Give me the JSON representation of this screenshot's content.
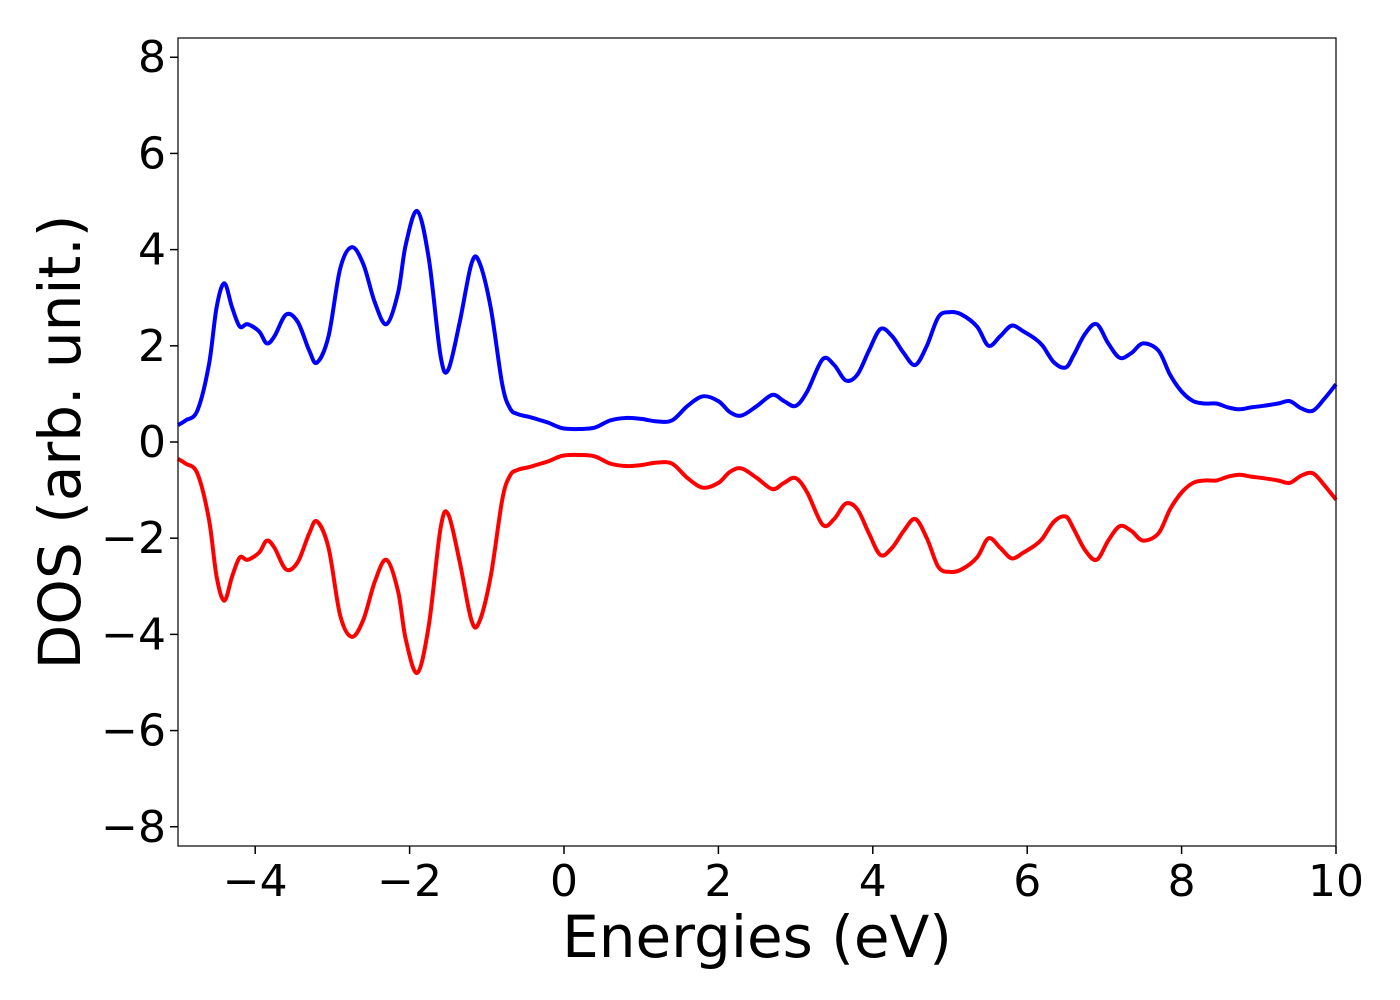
{
  "chart_data": {
    "type": "line",
    "xlabel": "Energies (eV)",
    "ylabel": "DOS (arb. unit.)",
    "xlim": [
      -5,
      10
    ],
    "ylim": [
      -8.4,
      8.4
    ],
    "xticks": [
      -4,
      -2,
      0,
      2,
      4,
      6,
      8,
      10
    ],
    "xtick_labels": [
      "−4",
      "−2",
      "0",
      "2",
      "4",
      "6",
      "8",
      "10"
    ],
    "yticks": [
      8,
      6,
      4,
      2,
      0,
      -2,
      -4,
      -6,
      -8
    ],
    "ytick_labels": [
      "8",
      "6",
      "4",
      "2",
      "0",
      "−2",
      "−4",
      "−6",
      "−8"
    ],
    "grid": false,
    "series": [
      {
        "color": "#0000ff",
        "x": [
          -5.0,
          -4.9,
          -4.75,
          -4.6,
          -4.5,
          -4.4,
          -4.3,
          -4.2,
          -4.1,
          -3.95,
          -3.85,
          -3.75,
          -3.6,
          -3.45,
          -3.3,
          -3.2,
          -3.05,
          -2.9,
          -2.75,
          -2.6,
          -2.45,
          -2.3,
          -2.15,
          -2.05,
          -1.9,
          -1.75,
          -1.6,
          -1.5,
          -1.35,
          -1.2,
          -1.1,
          -0.95,
          -0.8,
          -0.7,
          -0.6,
          -0.45,
          -0.3,
          -0.2,
          -0.1,
          0.0,
          0.2,
          0.4,
          0.6,
          0.8,
          1.0,
          1.2,
          1.4,
          1.6,
          1.8,
          2.0,
          2.15,
          2.3,
          2.5,
          2.7,
          2.85,
          3.0,
          3.15,
          3.35,
          3.5,
          3.65,
          3.8,
          3.95,
          4.1,
          4.25,
          4.4,
          4.55,
          4.7,
          4.85,
          5.0,
          5.15,
          5.35,
          5.5,
          5.65,
          5.8,
          5.95,
          6.1,
          6.2,
          6.35,
          6.5,
          6.6,
          6.75,
          6.9,
          7.05,
          7.2,
          7.35,
          7.5,
          7.7,
          7.85,
          8.0,
          8.15,
          8.3,
          8.45,
          8.6,
          8.75,
          8.9,
          9.05,
          9.25,
          9.4,
          9.55,
          9.7,
          9.85,
          10.0
        ],
        "values": [
          0.35,
          0.45,
          0.65,
          1.6,
          2.8,
          3.3,
          2.8,
          2.4,
          2.45,
          2.3,
          2.05,
          2.2,
          2.65,
          2.5,
          1.9,
          1.65,
          2.2,
          3.6,
          4.05,
          3.7,
          2.9,
          2.45,
          3.1,
          4.1,
          4.8,
          3.8,
          1.8,
          1.5,
          2.5,
          3.7,
          3.75,
          2.8,
          1.2,
          0.7,
          0.58,
          0.52,
          0.45,
          0.4,
          0.33,
          0.28,
          0.27,
          0.3,
          0.45,
          0.5,
          0.48,
          0.43,
          0.45,
          0.75,
          0.95,
          0.85,
          0.62,
          0.55,
          0.75,
          0.98,
          0.85,
          0.75,
          1.05,
          1.72,
          1.6,
          1.28,
          1.4,
          1.9,
          2.35,
          2.2,
          1.85,
          1.6,
          2.0,
          2.6,
          2.7,
          2.65,
          2.4,
          2.0,
          2.2,
          2.42,
          2.3,
          2.15,
          2.0,
          1.65,
          1.55,
          1.8,
          2.25,
          2.45,
          2.05,
          1.75,
          1.85,
          2.05,
          1.9,
          1.4,
          1.05,
          0.85,
          0.8,
          0.8,
          0.72,
          0.68,
          0.72,
          0.75,
          0.8,
          0.85,
          0.7,
          0.65,
          0.9,
          1.2
        ]
      },
      {
        "color": "#ff0000",
        "x": [
          -5.0,
          -4.9,
          -4.75,
          -4.6,
          -4.5,
          -4.4,
          -4.3,
          -4.2,
          -4.1,
          -3.95,
          -3.85,
          -3.75,
          -3.6,
          -3.45,
          -3.3,
          -3.2,
          -3.05,
          -2.9,
          -2.75,
          -2.6,
          -2.45,
          -2.3,
          -2.15,
          -2.05,
          -1.9,
          -1.75,
          -1.6,
          -1.5,
          -1.35,
          -1.2,
          -1.1,
          -0.95,
          -0.8,
          -0.7,
          -0.6,
          -0.45,
          -0.3,
          -0.2,
          -0.1,
          0.0,
          0.2,
          0.4,
          0.6,
          0.8,
          1.0,
          1.2,
          1.4,
          1.6,
          1.8,
          2.0,
          2.15,
          2.3,
          2.5,
          2.7,
          2.85,
          3.0,
          3.15,
          3.35,
          3.5,
          3.65,
          3.8,
          3.95,
          4.1,
          4.25,
          4.4,
          4.55,
          4.7,
          4.85,
          5.0,
          5.15,
          5.35,
          5.5,
          5.65,
          5.8,
          5.95,
          6.1,
          6.2,
          6.35,
          6.5,
          6.6,
          6.75,
          6.9,
          7.05,
          7.2,
          7.35,
          7.5,
          7.7,
          7.85,
          8.0,
          8.15,
          8.3,
          8.45,
          8.6,
          8.75,
          8.9,
          9.05,
          9.25,
          9.4,
          9.55,
          9.7,
          9.85,
          10.0
        ],
        "values": [
          -0.35,
          -0.45,
          -0.65,
          -1.6,
          -2.8,
          -3.3,
          -2.8,
          -2.4,
          -2.45,
          -2.3,
          -2.05,
          -2.2,
          -2.65,
          -2.5,
          -1.9,
          -1.65,
          -2.2,
          -3.6,
          -4.05,
          -3.7,
          -2.9,
          -2.45,
          -3.1,
          -4.1,
          -4.8,
          -3.8,
          -1.8,
          -1.5,
          -2.5,
          -3.7,
          -3.75,
          -2.8,
          -1.2,
          -0.7,
          -0.58,
          -0.52,
          -0.45,
          -0.4,
          -0.33,
          -0.28,
          -0.27,
          -0.3,
          -0.45,
          -0.5,
          -0.48,
          -0.43,
          -0.45,
          -0.75,
          -0.95,
          -0.85,
          -0.62,
          -0.55,
          -0.75,
          -0.98,
          -0.85,
          -0.75,
          -1.05,
          -1.72,
          -1.6,
          -1.28,
          -1.4,
          -1.9,
          -2.35,
          -2.2,
          -1.85,
          -1.6,
          -2.0,
          -2.6,
          -2.7,
          -2.65,
          -2.4,
          -2.0,
          -2.2,
          -2.42,
          -2.3,
          -2.15,
          -2.0,
          -1.65,
          -1.55,
          -1.8,
          -2.25,
          -2.45,
          -2.05,
          -1.75,
          -1.85,
          -2.05,
          -1.9,
          -1.4,
          -1.05,
          -0.85,
          -0.8,
          -0.8,
          -0.72,
          -0.68,
          -0.72,
          -0.75,
          -0.8,
          -0.85,
          -0.7,
          -0.65,
          -0.9,
          -1.2
        ]
      }
    ]
  }
}
